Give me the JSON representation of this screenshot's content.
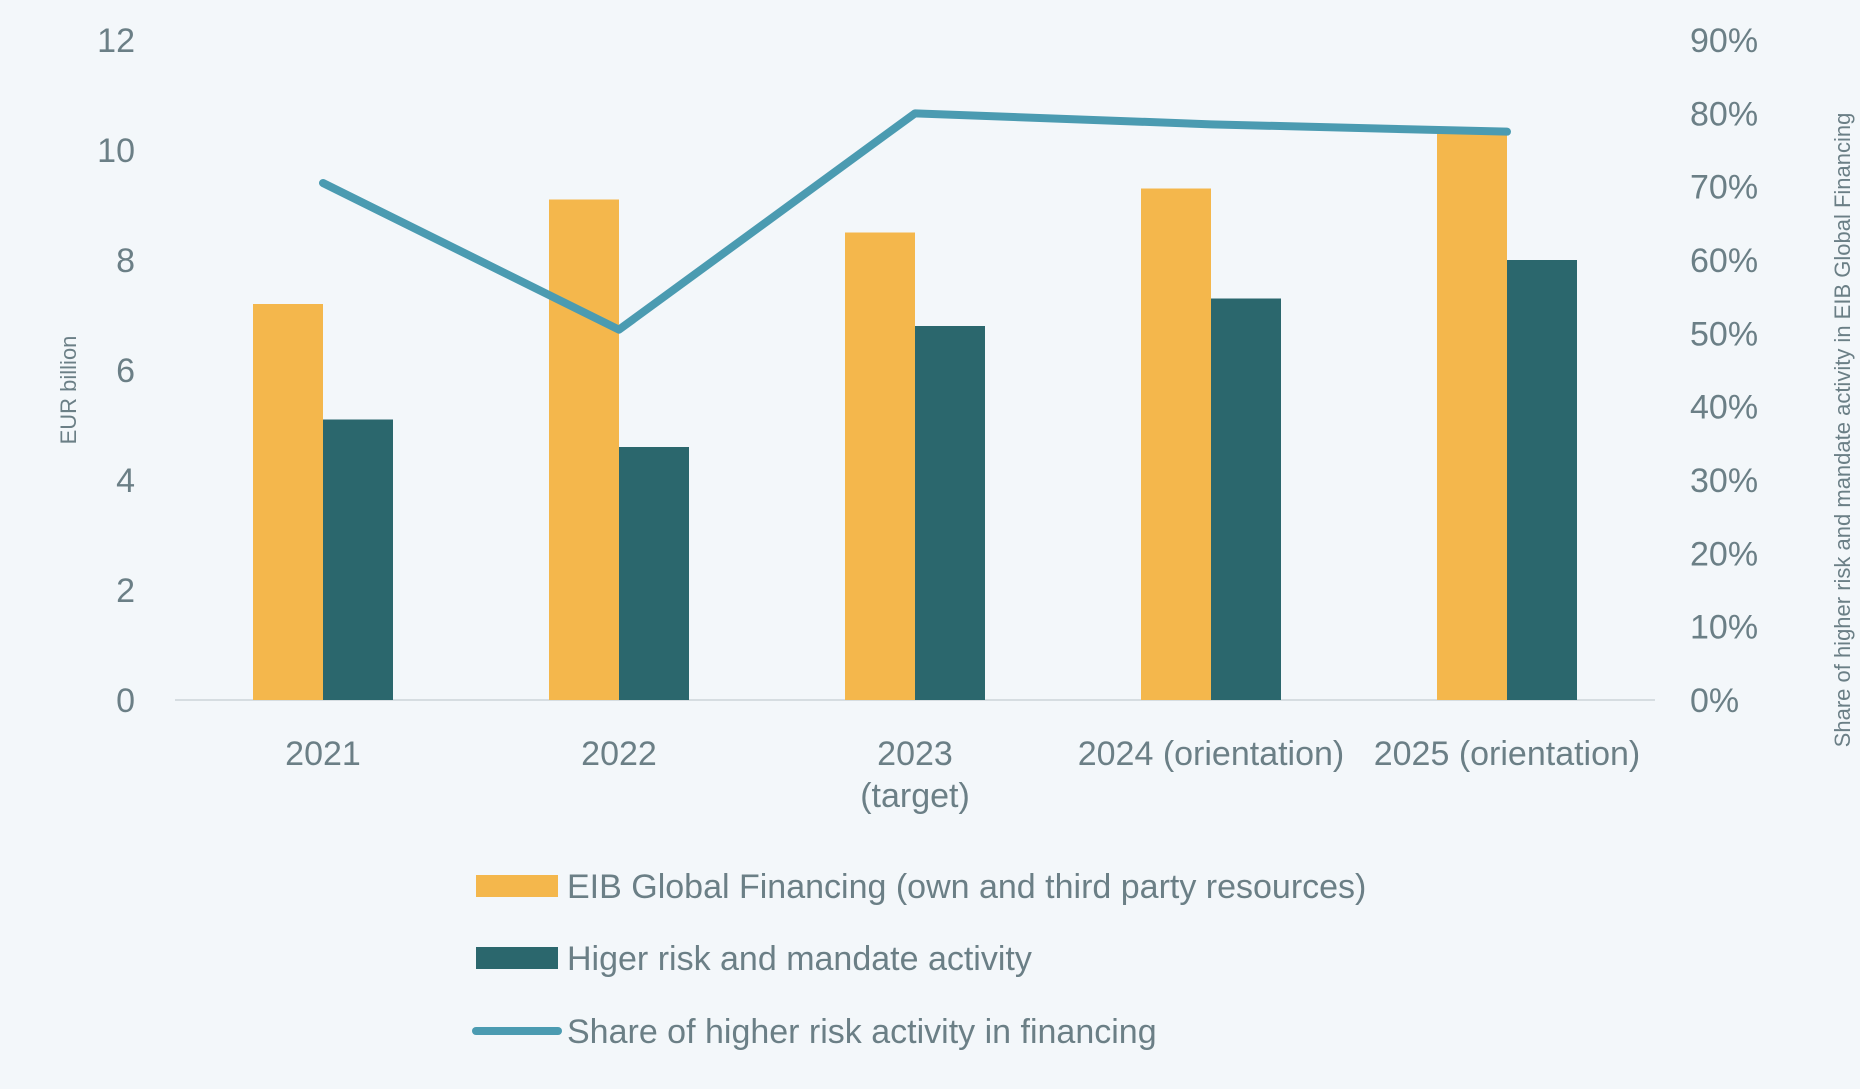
{
  "chart_data": {
    "type": "bar",
    "categories": [
      "2021",
      "2022",
      "2023\n(target)",
      "2024 (orientation)",
      "2025 (orientation)"
    ],
    "series": [
      {
        "name": "EIB Global Financing (own and third party resources)",
        "type": "bar",
        "axis": "left",
        "values": [
          7.2,
          9.1,
          8.5,
          9.3,
          10.3
        ]
      },
      {
        "name": "Higer risk and mandate activity",
        "type": "bar",
        "axis": "left",
        "values": [
          5.1,
          4.6,
          6.8,
          7.3,
          8.0
        ]
      },
      {
        "name": "Share of higher risk activity in financing",
        "type": "line",
        "axis": "right",
        "values": [
          0.705,
          0.505,
          0.8,
          0.785,
          0.775
        ]
      }
    ],
    "ylabel": "EUR billion",
    "ylim": [
      0,
      12
    ],
    "yticks": [
      "0",
      "2",
      "4",
      "6",
      "8",
      "10",
      "12"
    ],
    "y2label": "Share of higher risk and mandate activity in EIB Global Financing",
    "y2lim": [
      0,
      0.9
    ],
    "y2ticks": [
      "0%",
      "10%",
      "20%",
      "30%",
      "40%",
      "50%",
      "60%",
      "70%",
      "80%",
      "90%"
    ],
    "colors": {
      "bar1": "#f4b74c",
      "bar2": "#2b676d",
      "line": "#4b9bb1",
      "text": "#6b7f86",
      "axis": "#d6dde1"
    },
    "legend_position": "bottom",
    "grid": false
  }
}
